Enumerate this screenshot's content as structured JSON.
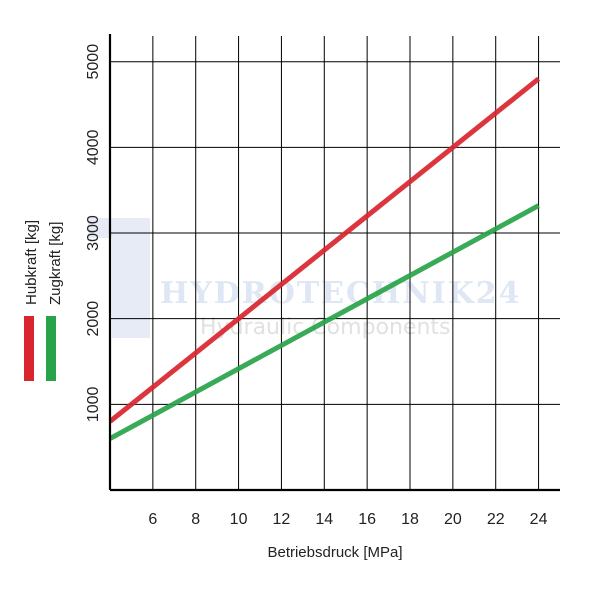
{
  "chart_data": {
    "type": "line",
    "xlabel": "Betriebsdruck [MPa]",
    "x_ticks": [
      6,
      8,
      10,
      12,
      14,
      16,
      18,
      20,
      22,
      24
    ],
    "y_ticks": [
      1000,
      2000,
      3000,
      4000,
      5000
    ],
    "xlim": [
      4,
      25
    ],
    "ylim": [
      0,
      5300
    ],
    "grid": true,
    "series": [
      {
        "name": "Hubkraft [kg]",
        "color": "#d9262e",
        "x": [
          4,
          24
        ],
        "y": [
          800,
          4800
        ]
      },
      {
        "name": "Zugkraft [kg]",
        "color": "#29a34a",
        "x": [
          4,
          24
        ],
        "y": [
          600,
          3320
        ]
      }
    ],
    "watermark": {
      "line1": "HYDROTECHNIK24",
      "line2": "Hydraulic Components"
    }
  }
}
